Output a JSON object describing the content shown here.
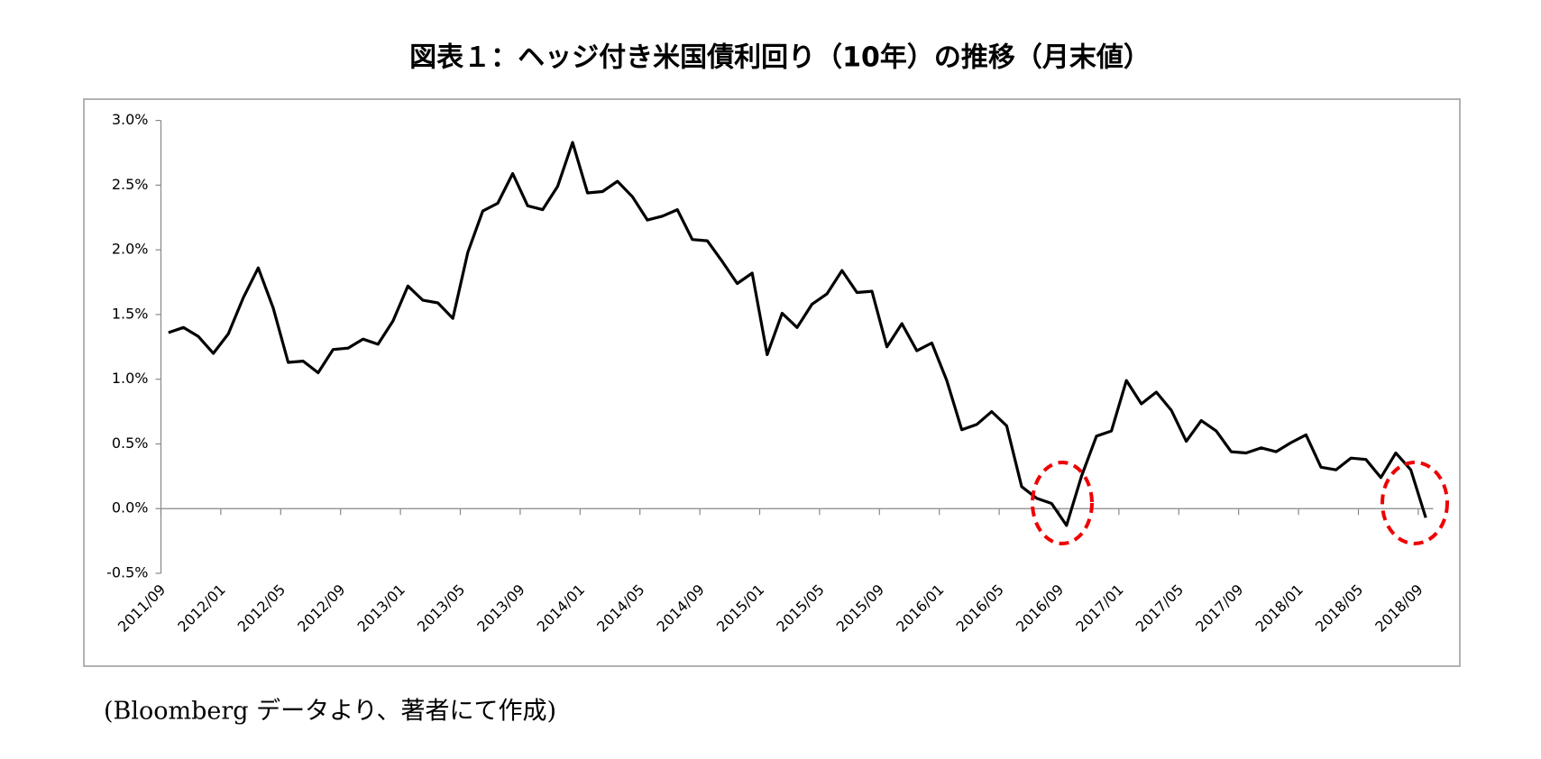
{
  "chart_data": {
    "type": "line",
    "title": "図表１：ヘッジ付き米国債利回り（10年）の推移（月末値）",
    "note": "(Bloomberg データより、著者にて作成)",
    "categories": [
      "2011/09",
      null,
      null,
      null,
      "2012/01",
      null,
      null,
      null,
      "2012/05",
      null,
      null,
      null,
      "2012/09",
      null,
      null,
      null,
      "2013/01",
      null,
      null,
      null,
      "2013/05",
      null,
      null,
      null,
      "2013/09",
      null,
      null,
      null,
      "2014/01",
      null,
      null,
      null,
      "2014/05",
      null,
      null,
      null,
      "2014/09",
      null,
      null,
      null,
      "2015/01",
      null,
      null,
      null,
      "2015/05",
      null,
      null,
      null,
      "2015/09",
      null,
      null,
      null,
      "2016/01",
      null,
      null,
      null,
      "2016/05",
      null,
      null,
      null,
      "2016/09",
      null,
      null,
      null,
      "2017/01",
      null,
      null,
      null,
      "2017/05",
      null,
      null,
      null,
      "2017/09",
      null,
      null,
      null,
      "2018/01",
      null,
      null,
      null,
      "2018/05",
      null,
      null,
      null,
      "2018/09"
    ],
    "series": [
      {
        "color": "#000000",
        "values": [
          1.36,
          1.4,
          1.33,
          1.2,
          1.35,
          1.63,
          1.86,
          1.55,
          1.13,
          1.14,
          1.05,
          1.23,
          1.24,
          1.31,
          1.27,
          1.45,
          1.72,
          1.61,
          1.59,
          1.47,
          1.98,
          2.3,
          2.36,
          2.59,
          2.34,
          2.31,
          2.49,
          2.83,
          2.44,
          2.45,
          2.53,
          2.41,
          2.23,
          2.26,
          2.31,
          2.08,
          2.07,
          1.91,
          1.74,
          1.82,
          1.19,
          1.51,
          1.4,
          1.58,
          1.66,
          1.84,
          1.67,
          1.68,
          1.25,
          1.43,
          1.22,
          1.28,
          0.99,
          0.61,
          0.65,
          0.75,
          0.64,
          0.17,
          0.08,
          0.04,
          -0.13,
          0.25,
          0.56,
          0.6,
          0.99,
          0.81,
          0.9,
          0.76,
          0.52,
          0.68,
          0.6,
          0.44,
          0.43,
          0.47,
          0.44,
          0.51,
          0.57,
          0.32,
          0.3,
          0.39,
          0.38,
          0.24,
          0.43,
          0.3,
          -0.07
        ]
      }
    ],
    "ylim": [
      -0.5,
      3
    ],
    "yticks": [
      {
        "value": -0.5,
        "label": "-0.5%"
      },
      {
        "value": 0,
        "label": "0.0%"
      },
      {
        "value": 0.5,
        "label": "0.5%"
      },
      {
        "value": 1,
        "label": "1.0%"
      },
      {
        "value": 1.5,
        "label": "1.5%"
      },
      {
        "value": 2,
        "label": "2.0%"
      },
      {
        "value": 2.5,
        "label": "2.5%"
      },
      {
        "value": 3,
        "label": "3.0%"
      }
    ],
    "grid": false
  }
}
